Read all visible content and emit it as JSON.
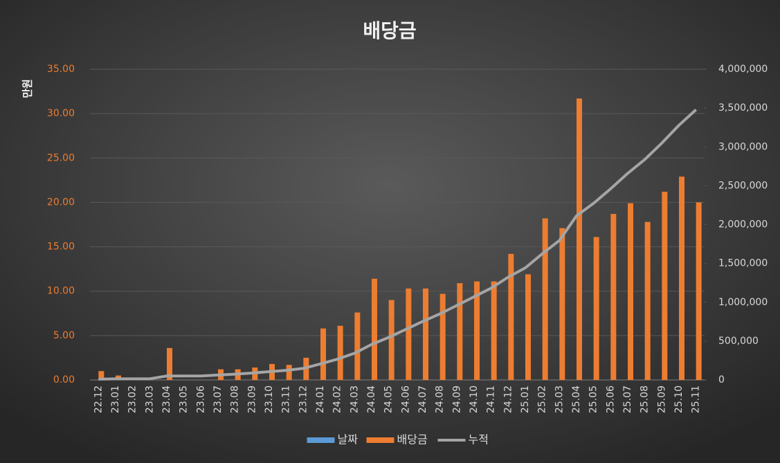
{
  "chart_data": {
    "type": "bar",
    "title": "배당금",
    "y_label": "만원",
    "categories": [
      "22.12",
      "23.01",
      "23.02",
      "23.03",
      "23.04",
      "23.05",
      "23.06",
      "23.07",
      "23.08",
      "23.09",
      "23.10",
      "23.11",
      "23.12",
      "24.01",
      "24.02",
      "24.03",
      "24.04",
      "24.05",
      "24.06",
      "24.07",
      "24.08",
      "24.09",
      "24.10",
      "24.11",
      "24.12",
      "25.01",
      "25.02",
      "25.03",
      "25.04",
      "25.05",
      "25.06",
      "25.07",
      "25.08",
      "25.09",
      "25.10",
      "25.11"
    ],
    "series": [
      {
        "name": "날짜",
        "color": "#5b9bd5",
        "type": "bar",
        "values": [
          null,
          null,
          null,
          null,
          null,
          null,
          null,
          null,
          null,
          null,
          null,
          null,
          null,
          null,
          null,
          null,
          null,
          null,
          null,
          null,
          null,
          null,
          null,
          null,
          null,
          null,
          null,
          null,
          null,
          null,
          null,
          null,
          null,
          null,
          null,
          null
        ]
      },
      {
        "name": "배당금",
        "color": "#ed7d31",
        "type": "bar",
        "values": [
          1.0,
          0.5,
          0,
          0,
          3.6,
          0,
          0,
          1.2,
          1.2,
          1.4,
          1.8,
          1.7,
          2.5,
          5.8,
          6.1,
          7.6,
          11.4,
          9.0,
          10.3,
          10.3,
          9.7,
          10.9,
          11.1,
          11.1,
          14.2,
          11.9,
          18.2,
          17.1,
          31.7,
          16.1,
          18.7,
          19.9,
          17.8,
          21.2,
          22.9,
          20.0
        ]
      },
      {
        "name": "누적",
        "color": "#a5a5a5",
        "type": "line",
        "axis": "y2",
        "values": [
          10000,
          15000,
          15000,
          15000,
          51000,
          51000,
          51000,
          63000,
          75000,
          89000,
          107000,
          124000,
          149000,
          207000,
          268000,
          344000,
          458000,
          548000,
          651000,
          754000,
          851000,
          960000,
          1071000,
          1182000,
          1324000,
          1443000,
          1625000,
          1796000,
          2113000,
          2274000,
          2461000,
          2660000,
          2838000,
          3050000,
          3279000,
          3479000
        ]
      }
    ],
    "ylim": [
      0,
      35
    ],
    "yticks": [
      {
        "value": 0,
        "label": "0.00"
      },
      {
        "value": 5,
        "label": "5.00"
      },
      {
        "value": 10,
        "label": "10.00"
      },
      {
        "value": 15,
        "label": "15.00"
      },
      {
        "value": 20,
        "label": "20.00"
      },
      {
        "value": 25,
        "label": "25.00"
      },
      {
        "value": 30,
        "label": "30.00"
      },
      {
        "value": 35,
        "label": "35.00"
      }
    ],
    "y2lim": [
      0,
      4000000
    ],
    "y2ticks": [
      0,
      {
        "value": 500000,
        "label": "500,000"
      },
      {
        "value": 1000000,
        "label": "1,000,000"
      },
      {
        "value": 1500000,
        "label": "1,500,000"
      },
      {
        "value": 2000000,
        "label": "2,000,000"
      },
      {
        "value": 2500000,
        "label": "2,500,000"
      },
      {
        "value": 3000000,
        "label": "3,000,000"
      },
      {
        "value": 3500000,
        "label": "3,500,000"
      },
      {
        "value": 4000000,
        "label": "4,000,000"
      }
    ],
    "grid": true,
    "legend": "bottom"
  }
}
